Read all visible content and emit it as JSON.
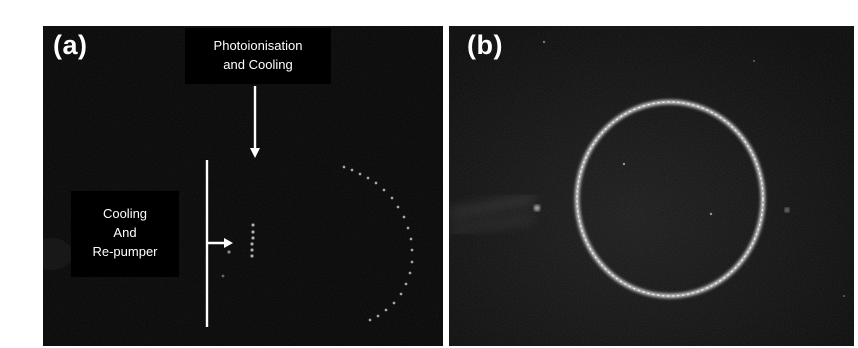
{
  "panels": [
    {
      "label": "(a)"
    },
    {
      "label": "(b)"
    }
  ],
  "annotations": {
    "photoionisation": {
      "line1": "Photoionisation",
      "line2": "and Cooling"
    },
    "cooling_repumper": {
      "line1": "Cooling",
      "line2": "And",
      "line3": "Re-pumper"
    }
  },
  "colors": {
    "background": "#000000",
    "text": "#ffffff",
    "ion_glow": "#e8e8e8"
  }
}
